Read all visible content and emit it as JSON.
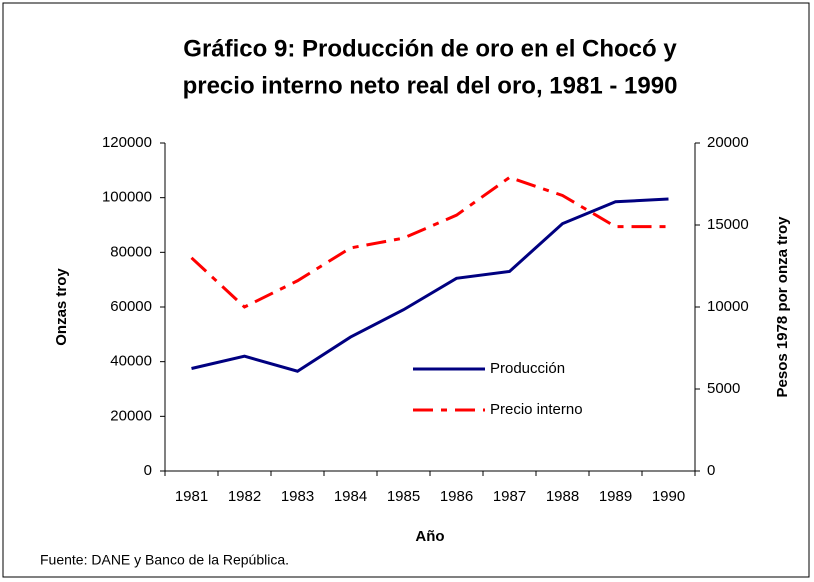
{
  "chart_data": {
    "type": "line",
    "title": [
      "Gráfico 9: Producción de oro en el Chocó y",
      "precio interno neto real del oro, 1981 - 1990"
    ],
    "x_label": "Año",
    "y_label": "Onzas troy",
    "y2_label": "Pesos 1978 por onza troy",
    "source": "Fuente: DANE y Banco de la República.",
    "categories": [
      "1981",
      "1982",
      "1983",
      "1984",
      "1985",
      "1986",
      "1987",
      "1988",
      "1989",
      "1990"
    ],
    "series": [
      {
        "name": "Producción",
        "color": "#000080",
        "dash": "solid",
        "values": [
          37500,
          42000,
          36500,
          49000,
          59000,
          70500,
          73000,
          90500,
          98500,
          99500
        ]
      },
      {
        "name": "Precio interno",
        "color": "#ff0000",
        "dash": "dashdot",
        "axis": "y2",
        "values": [
          13000,
          10000,
          11600,
          13600,
          14200,
          15600,
          17900,
          16800,
          14900,
          14900
        ]
      }
    ],
    "ylim": [
      0,
      120000
    ],
    "yticks": [
      0,
      20000,
      40000,
      60000,
      80000,
      100000,
      120000
    ],
    "y2lim": [
      0,
      20000
    ],
    "y2ticks": [
      0,
      5000,
      10000,
      15000,
      20000
    ],
    "legend": "center"
  }
}
